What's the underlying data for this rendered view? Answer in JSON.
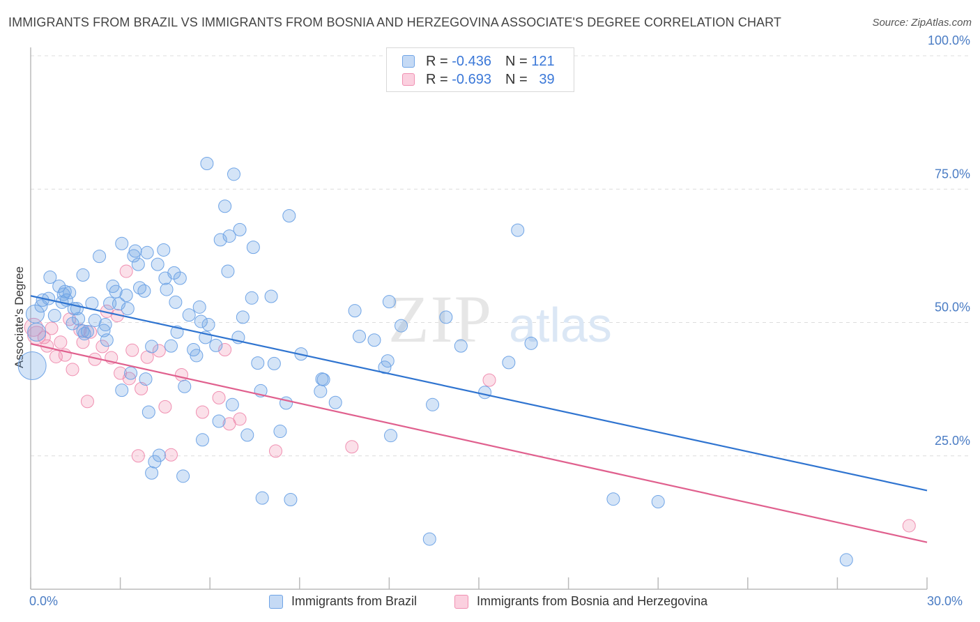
{
  "chart_data": {
    "type": "scatter",
    "title": "IMMIGRANTS FROM BRAZIL VS IMMIGRANTS FROM BOSNIA AND HERZEGOVINA ASSOCIATE'S DEGREE CORRELATION CHART",
    "source": "Source: ZipAtlas.com",
    "xlabel": "",
    "ylabel": "Associate's Degree",
    "xlim": [
      0,
      30
    ],
    "ylim": [
      0,
      100
    ],
    "x_tick_labels": [
      "0.0%",
      "30.0%"
    ],
    "y_ticks": [
      {
        "value": 25,
        "label": "25.0%"
      },
      {
        "value": 50,
        "label": "50.0%"
      },
      {
        "value": 75,
        "label": "75.0%"
      },
      {
        "value": 100,
        "label": "100.0%"
      }
    ],
    "watermark": {
      "zip": "ZIP",
      "atlas": "atlas"
    },
    "legend": {
      "r_label": "R =",
      "n_label": "N =",
      "entries": [
        {
          "name": "Immigrants from Brazil",
          "r": "-0.436",
          "n": "121",
          "color": "#6fa4e6"
        },
        {
          "name": "Immigrants from Bosnia and Herzegovina",
          "r": "-0.693",
          "n": "39",
          "color": "#f08fb1"
        }
      ]
    },
    "series": [
      {
        "name": "Immigrants from Brazil",
        "color": "#6fa4e6",
        "trend_color": "#2f74d0",
        "trend": {
          "x": [
            0,
            30
          ],
          "y": [
            55.0,
            18.5
          ]
        },
        "points": [
          {
            "x": 0.05,
            "y": 41.9,
            "big": 2
          },
          {
            "x": 0.2,
            "y": 48.2,
            "big": 1
          },
          {
            "x": 0.15,
            "y": 51.6,
            "big": 1
          },
          {
            "x": 0.4,
            "y": 54.2
          },
          {
            "x": 0.35,
            "y": 53.1
          },
          {
            "x": 0.6,
            "y": 54.5
          },
          {
            "x": 0.65,
            "y": 58.5
          },
          {
            "x": 0.8,
            "y": 51.3
          },
          {
            "x": 0.95,
            "y": 56.8
          },
          {
            "x": 1.05,
            "y": 53.8
          },
          {
            "x": 1.1,
            "y": 55.3
          },
          {
            "x": 1.15,
            "y": 55.8
          },
          {
            "x": 1.2,
            "y": 54.2
          },
          {
            "x": 1.3,
            "y": 55.6
          },
          {
            "x": 1.4,
            "y": 49.8
          },
          {
            "x": 1.45,
            "y": 52.6
          },
          {
            "x": 1.55,
            "y": 52.6
          },
          {
            "x": 1.6,
            "y": 50.7
          },
          {
            "x": 1.75,
            "y": 58.9
          },
          {
            "x": 1.75,
            "y": 48.4
          },
          {
            "x": 1.8,
            "y": 47.9
          },
          {
            "x": 1.9,
            "y": 48.3
          },
          {
            "x": 2.05,
            "y": 53.6
          },
          {
            "x": 2.15,
            "y": 50.4
          },
          {
            "x": 2.3,
            "y": 62.4
          },
          {
            "x": 2.45,
            "y": 48.5
          },
          {
            "x": 2.5,
            "y": 49.6
          },
          {
            "x": 2.55,
            "y": 46.7
          },
          {
            "x": 2.65,
            "y": 53.6
          },
          {
            "x": 2.75,
            "y": 56.8
          },
          {
            "x": 2.85,
            "y": 55.8
          },
          {
            "x": 2.95,
            "y": 53.5
          },
          {
            "x": 3.05,
            "y": 37.3
          },
          {
            "x": 3.05,
            "y": 64.8
          },
          {
            "x": 3.2,
            "y": 55.1
          },
          {
            "x": 3.25,
            "y": 52.6
          },
          {
            "x": 3.35,
            "y": 40.5
          },
          {
            "x": 3.45,
            "y": 62.5
          },
          {
            "x": 3.5,
            "y": 63.4
          },
          {
            "x": 3.6,
            "y": 60.9
          },
          {
            "x": 3.65,
            "y": 56.5
          },
          {
            "x": 3.8,
            "y": 55.9
          },
          {
            "x": 3.85,
            "y": 39.4
          },
          {
            "x": 3.9,
            "y": 63.1
          },
          {
            "x": 3.95,
            "y": 33.2
          },
          {
            "x": 4.05,
            "y": 45.5
          },
          {
            "x": 4.05,
            "y": 21.8
          },
          {
            "x": 4.15,
            "y": 23.9
          },
          {
            "x": 4.3,
            "y": 25.1
          },
          {
            "x": 4.25,
            "y": 60.9
          },
          {
            "x": 4.45,
            "y": 63.6
          },
          {
            "x": 4.5,
            "y": 58.3
          },
          {
            "x": 4.55,
            "y": 56.2
          },
          {
            "x": 4.7,
            "y": 45.6
          },
          {
            "x": 4.8,
            "y": 59.3
          },
          {
            "x": 4.85,
            "y": 53.8
          },
          {
            "x": 4.9,
            "y": 48.2
          },
          {
            "x": 5.0,
            "y": 58.3
          },
          {
            "x": 5.1,
            "y": 21.2
          },
          {
            "x": 5.15,
            "y": 38.0
          },
          {
            "x": 5.3,
            "y": 51.4
          },
          {
            "x": 5.45,
            "y": 44.9
          },
          {
            "x": 5.55,
            "y": 43.8
          },
          {
            "x": 5.65,
            "y": 52.9
          },
          {
            "x": 5.7,
            "y": 50.2
          },
          {
            "x": 5.75,
            "y": 28.0
          },
          {
            "x": 5.85,
            "y": 47.2
          },
          {
            "x": 5.9,
            "y": 79.8
          },
          {
            "x": 5.95,
            "y": 49.6
          },
          {
            "x": 6.2,
            "y": 45.7
          },
          {
            "x": 6.3,
            "y": 31.5
          },
          {
            "x": 6.35,
            "y": 65.5
          },
          {
            "x": 6.5,
            "y": 71.8
          },
          {
            "x": 6.6,
            "y": 59.6
          },
          {
            "x": 6.65,
            "y": 66.2
          },
          {
            "x": 6.75,
            "y": 34.6
          },
          {
            "x": 6.8,
            "y": 77.8
          },
          {
            "x": 6.95,
            "y": 47.2
          },
          {
            "x": 7.0,
            "y": 67.4
          },
          {
            "x": 7.1,
            "y": 51.0
          },
          {
            "x": 7.25,
            "y": 28.9
          },
          {
            "x": 7.4,
            "y": 54.6
          },
          {
            "x": 7.45,
            "y": 64.1
          },
          {
            "x": 7.6,
            "y": 42.4
          },
          {
            "x": 7.7,
            "y": 37.2
          },
          {
            "x": 7.75,
            "y": 17.1
          },
          {
            "x": 8.05,
            "y": 54.9
          },
          {
            "x": 8.15,
            "y": 42.3
          },
          {
            "x": 8.35,
            "y": 29.6
          },
          {
            "x": 8.55,
            "y": 34.9
          },
          {
            "x": 8.65,
            "y": 70.0
          },
          {
            "x": 8.7,
            "y": 16.8
          },
          {
            "x": 9.05,
            "y": 44.1
          },
          {
            "x": 9.75,
            "y": 39.4
          },
          {
            "x": 9.8,
            "y": 39.3
          },
          {
            "x": 9.7,
            "y": 37.1
          },
          {
            "x": 10.2,
            "y": 35.0
          },
          {
            "x": 10.85,
            "y": 52.2
          },
          {
            "x": 11.0,
            "y": 47.4
          },
          {
            "x": 11.5,
            "y": 46.7
          },
          {
            "x": 11.85,
            "y": 41.6
          },
          {
            "x": 11.95,
            "y": 42.8
          },
          {
            "x": 12.0,
            "y": 53.9
          },
          {
            "x": 12.05,
            "y": 28.8
          },
          {
            "x": 12.4,
            "y": 49.4
          },
          {
            "x": 13.35,
            "y": 9.4
          },
          {
            "x": 13.45,
            "y": 34.6
          },
          {
            "x": 13.9,
            "y": 51.0
          },
          {
            "x": 14.4,
            "y": 45.6
          },
          {
            "x": 15.2,
            "y": 36.9
          },
          {
            "x": 16.0,
            "y": 42.5
          },
          {
            "x": 16.3,
            "y": 67.3
          },
          {
            "x": 16.75,
            "y": 46.1
          },
          {
            "x": 19.5,
            "y": 16.9
          },
          {
            "x": 21.0,
            "y": 16.4
          },
          {
            "x": 27.3,
            "y": 5.5
          }
        ]
      },
      {
        "name": "Immigrants from Bosnia and Herzegovina",
        "color": "#f08fb1",
        "trend_color": "#e0608e",
        "trend": {
          "x": [
            0,
            30
          ],
          "y": [
            46.0,
            8.8
          ]
        },
        "points": [
          {
            "x": 0.1,
            "y": 49.1,
            "big": 1
          },
          {
            "x": 0.2,
            "y": 47.6,
            "big": 1
          },
          {
            "x": 0.45,
            "y": 47.2
          },
          {
            "x": 0.55,
            "y": 45.6
          },
          {
            "x": 0.7,
            "y": 48.9
          },
          {
            "x": 0.85,
            "y": 43.6
          },
          {
            "x": 1.0,
            "y": 46.3
          },
          {
            "x": 1.15,
            "y": 43.9
          },
          {
            "x": 1.4,
            "y": 41.2
          },
          {
            "x": 1.3,
            "y": 50.6
          },
          {
            "x": 1.65,
            "y": 48.6
          },
          {
            "x": 1.75,
            "y": 46.3
          },
          {
            "x": 1.9,
            "y": 35.2
          },
          {
            "x": 2.0,
            "y": 48.2
          },
          {
            "x": 2.15,
            "y": 43.1
          },
          {
            "x": 2.4,
            "y": 45.5
          },
          {
            "x": 2.55,
            "y": 52.1
          },
          {
            "x": 2.7,
            "y": 43.4
          },
          {
            "x": 2.9,
            "y": 51.3
          },
          {
            "x": 3.0,
            "y": 40.5
          },
          {
            "x": 3.2,
            "y": 59.6
          },
          {
            "x": 3.3,
            "y": 39.5
          },
          {
            "x": 3.4,
            "y": 44.8
          },
          {
            "x": 3.6,
            "y": 25.0
          },
          {
            "x": 3.7,
            "y": 37.6
          },
          {
            "x": 3.9,
            "y": 43.5
          },
          {
            "x": 4.3,
            "y": 44.7
          },
          {
            "x": 4.5,
            "y": 34.2
          },
          {
            "x": 4.7,
            "y": 25.2
          },
          {
            "x": 5.05,
            "y": 40.2
          },
          {
            "x": 5.75,
            "y": 33.2
          },
          {
            "x": 6.3,
            "y": 35.9
          },
          {
            "x": 6.5,
            "y": 44.9
          },
          {
            "x": 6.65,
            "y": 31.0
          },
          {
            "x": 7.0,
            "y": 31.9
          },
          {
            "x": 8.2,
            "y": 25.9
          },
          {
            "x": 10.75,
            "y": 26.7
          },
          {
            "x": 15.35,
            "y": 39.2
          },
          {
            "x": 29.4,
            "y": 11.9
          }
        ]
      }
    ]
  }
}
